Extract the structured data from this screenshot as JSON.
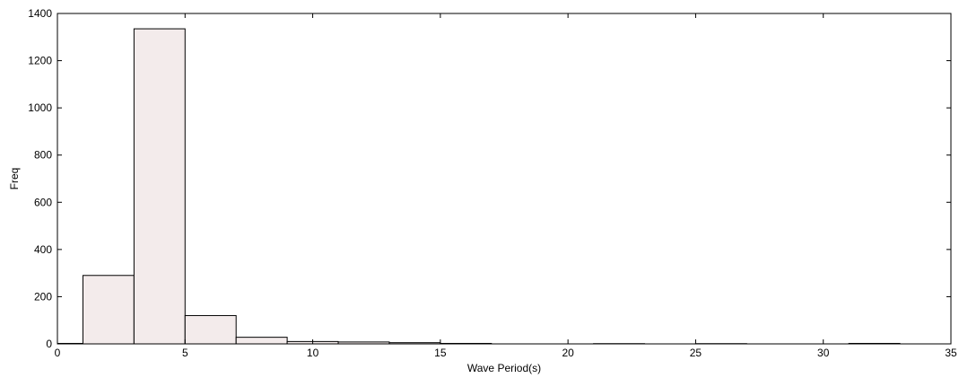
{
  "chart_data": {
    "type": "bar",
    "title": "",
    "xlabel": "Wave Period(s)",
    "ylabel": "Freq",
    "xlim": [
      0,
      35
    ],
    "ylim": [
      0,
      1400
    ],
    "xticks": [
      0,
      5,
      10,
      15,
      20,
      25,
      30,
      35
    ],
    "yticks": [
      0,
      200,
      400,
      600,
      800,
      1000,
      1200,
      1400
    ],
    "bin_width": 2,
    "bins": [
      {
        "x0": -1,
        "x1": 1,
        "value": 2
      },
      {
        "x0": 1,
        "x1": 3,
        "value": 290
      },
      {
        "x0": 3,
        "x1": 5,
        "value": 1335
      },
      {
        "x0": 5,
        "x1": 7,
        "value": 120
      },
      {
        "x0": 7,
        "x1": 9,
        "value": 28
      },
      {
        "x0": 9,
        "x1": 11,
        "value": 10
      },
      {
        "x0": 11,
        "x1": 13,
        "value": 8
      },
      {
        "x0": 13,
        "x1": 15,
        "value": 5
      },
      {
        "x0": 15,
        "x1": 17,
        "value": 2
      },
      {
        "x0": 17,
        "x1": 19,
        "value": 0
      },
      {
        "x0": 19,
        "x1": 21,
        "value": 0
      },
      {
        "x0": 21,
        "x1": 23,
        "value": 1
      },
      {
        "x0": 23,
        "x1": 25,
        "value": 0
      },
      {
        "x0": 25,
        "x1": 27,
        "value": 1
      },
      {
        "x0": 27,
        "x1": 29,
        "value": 0
      },
      {
        "x0": 29,
        "x1": 31,
        "value": 0
      },
      {
        "x0": 31,
        "x1": 33,
        "value": 2
      }
    ],
    "grid": false,
    "legend": "none",
    "bar_fill": "#f3ebeb",
    "bar_stroke": "#000000"
  }
}
